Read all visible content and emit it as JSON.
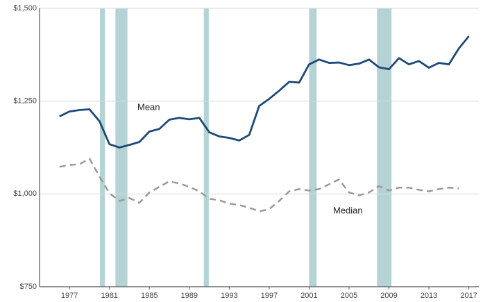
{
  "chart_data": {
    "type": "line",
    "x": [
      1976,
      1977,
      1978,
      1979,
      1980,
      1981,
      1982,
      1983,
      1984,
      1985,
      1986,
      1987,
      1988,
      1989,
      1990,
      1991,
      1992,
      1993,
      1994,
      1995,
      1996,
      1997,
      1998,
      1999,
      2000,
      2001,
      2002,
      2003,
      2004,
      2005,
      2006,
      2007,
      2008,
      2009,
      2010,
      2011,
      2012,
      2013,
      2014,
      2015,
      2016,
      2017
    ],
    "series": [
      {
        "name": "Mean",
        "color": "#1d4a77",
        "dashed": false,
        "values": [
          1209,
          1222,
          1226,
          1228,
          1196,
          1134,
          1125,
          1132,
          1140,
          1168,
          1175,
          1200,
          1205,
          1201,
          1205,
          1166,
          1155,
          1151,
          1144,
          1159,
          1237,
          1256,
          1278,
          1302,
          1300,
          1349,
          1362,
          1353,
          1354,
          1347,
          1351,
          1362,
          1341,
          1336,
          1366,
          1349,
          1358,
          1340,
          1353,
          1349,
          1392,
          1425
        ]
      },
      {
        "name": "Median",
        "color": "#9a9a9a",
        "dashed": true,
        "values": [
          1073,
          1078,
          1080,
          1095,
          1047,
          1002,
          981,
          989,
          976,
          1004,
          1019,
          1034,
          1028,
          1019,
          1007,
          987,
          983,
          974,
          970,
          963,
          953,
          959,
          981,
          1007,
          1013,
          1009,
          1013,
          1026,
          1039,
          1004,
          996,
          1004,
          1021,
          1009,
          1017,
          1017,
          1011,
          1007,
          1013,
          1017,
          1015,
          null
        ]
      }
    ],
    "shaded_periods": [
      [
        1980.05,
        1980.55
      ],
      [
        1981.6,
        1982.8
      ],
      [
        1990.45,
        1990.95
      ],
      [
        2001.0,
        2001.75
      ],
      [
        2007.8,
        2009.25
      ]
    ],
    "shade_color": "#b5d3d5",
    "xlim": [
      1974,
      2018
    ],
    "xticks": [
      1977,
      1981,
      1985,
      1989,
      1993,
      1997,
      2001,
      2005,
      2009,
      2013,
      2017
    ],
    "ylim": [
      750,
      1500
    ],
    "yticks": [
      {
        "value": 750,
        "label": "$750"
      },
      {
        "value": 1000,
        "label": "$1,000"
      },
      {
        "value": 1250,
        "label": "$1,250"
      },
      {
        "value": 1500,
        "label": "$1,500"
      }
    ],
    "grid": true
  }
}
